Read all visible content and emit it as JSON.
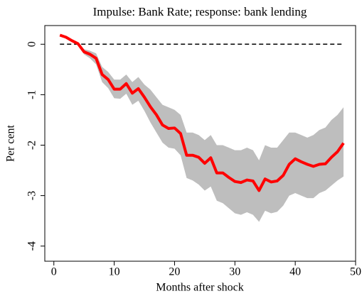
{
  "chart_data": {
    "type": "line",
    "title": "Impulse: Bank Rate; response: bank lending",
    "xlabel": "Months after shock",
    "ylabel": "Per cent",
    "x": [
      1,
      2,
      3,
      4,
      5,
      6,
      7,
      8,
      9,
      10,
      11,
      12,
      13,
      14,
      15,
      16,
      17,
      18,
      19,
      20,
      21,
      22,
      23,
      24,
      25,
      26,
      27,
      28,
      29,
      30,
      31,
      32,
      33,
      34,
      35,
      36,
      37,
      38,
      39,
      40,
      41,
      42,
      43,
      44,
      45,
      46,
      47,
      48
    ],
    "series": [
      {
        "color": "#ff0000",
        "values": [
          0.18,
          0.14,
          0.07,
          0.01,
          -0.15,
          -0.2,
          -0.28,
          -0.6,
          -0.7,
          -0.89,
          -0.89,
          -0.78,
          -0.97,
          -0.88,
          -1.05,
          -1.24,
          -1.4,
          -1.6,
          -1.67,
          -1.66,
          -1.77,
          -2.2,
          -2.2,
          -2.24,
          -2.36,
          -2.25,
          -2.55,
          -2.55,
          -2.64,
          -2.72,
          -2.74,
          -2.69,
          -2.71,
          -2.9,
          -2.67,
          -2.73,
          -2.71,
          -2.6,
          -2.38,
          -2.27,
          -2.33,
          -2.38,
          -2.42,
          -2.38,
          -2.37,
          -2.24,
          -2.13,
          -1.96
        ]
      }
    ],
    "band": {
      "color": "#bebebe",
      "upper": [
        0.18,
        0.14,
        0.08,
        0.03,
        -0.1,
        -0.13,
        -0.18,
        -0.45,
        -0.55,
        -0.7,
        -0.7,
        -0.6,
        -0.75,
        -0.65,
        -0.8,
        -0.9,
        -1.05,
        -1.2,
        -1.25,
        -1.3,
        -1.4,
        -1.75,
        -1.75,
        -1.8,
        -1.9,
        -1.8,
        -2.0,
        -2.0,
        -2.05,
        -2.1,
        -2.1,
        -2.05,
        -2.1,
        -2.3,
        -2.0,
        -2.05,
        -2.05,
        -1.9,
        -1.75,
        -1.75,
        -1.8,
        -1.85,
        -1.8,
        -1.7,
        -1.65,
        -1.5,
        -1.4,
        -1.25
      ],
      "lower": [
        0.18,
        0.13,
        0.05,
        -0.02,
        -0.2,
        -0.28,
        -0.4,
        -0.75,
        -0.87,
        -1.07,
        -1.08,
        -0.98,
        -1.2,
        -1.12,
        -1.32,
        -1.55,
        -1.75,
        -1.95,
        -2.05,
        -2.07,
        -2.2,
        -2.65,
        -2.7,
        -2.78,
        -2.9,
        -2.82,
        -3.1,
        -3.15,
        -3.25,
        -3.35,
        -3.38,
        -3.33,
        -3.38,
        -3.52,
        -3.3,
        -3.35,
        -3.32,
        -3.2,
        -3.0,
        -2.95,
        -3.0,
        -3.05,
        -3.05,
        -2.95,
        -2.9,
        -2.8,
        -2.7,
        -2.62
      ]
    },
    "reference_line": 0,
    "xlim": [
      -1.5,
      50
    ],
    "ylim": [
      -4.3,
      0.37
    ],
    "xticks": [
      0,
      10,
      20,
      30,
      40,
      50
    ],
    "yticks": [
      0,
      -1,
      -2,
      -3,
      -4
    ]
  }
}
